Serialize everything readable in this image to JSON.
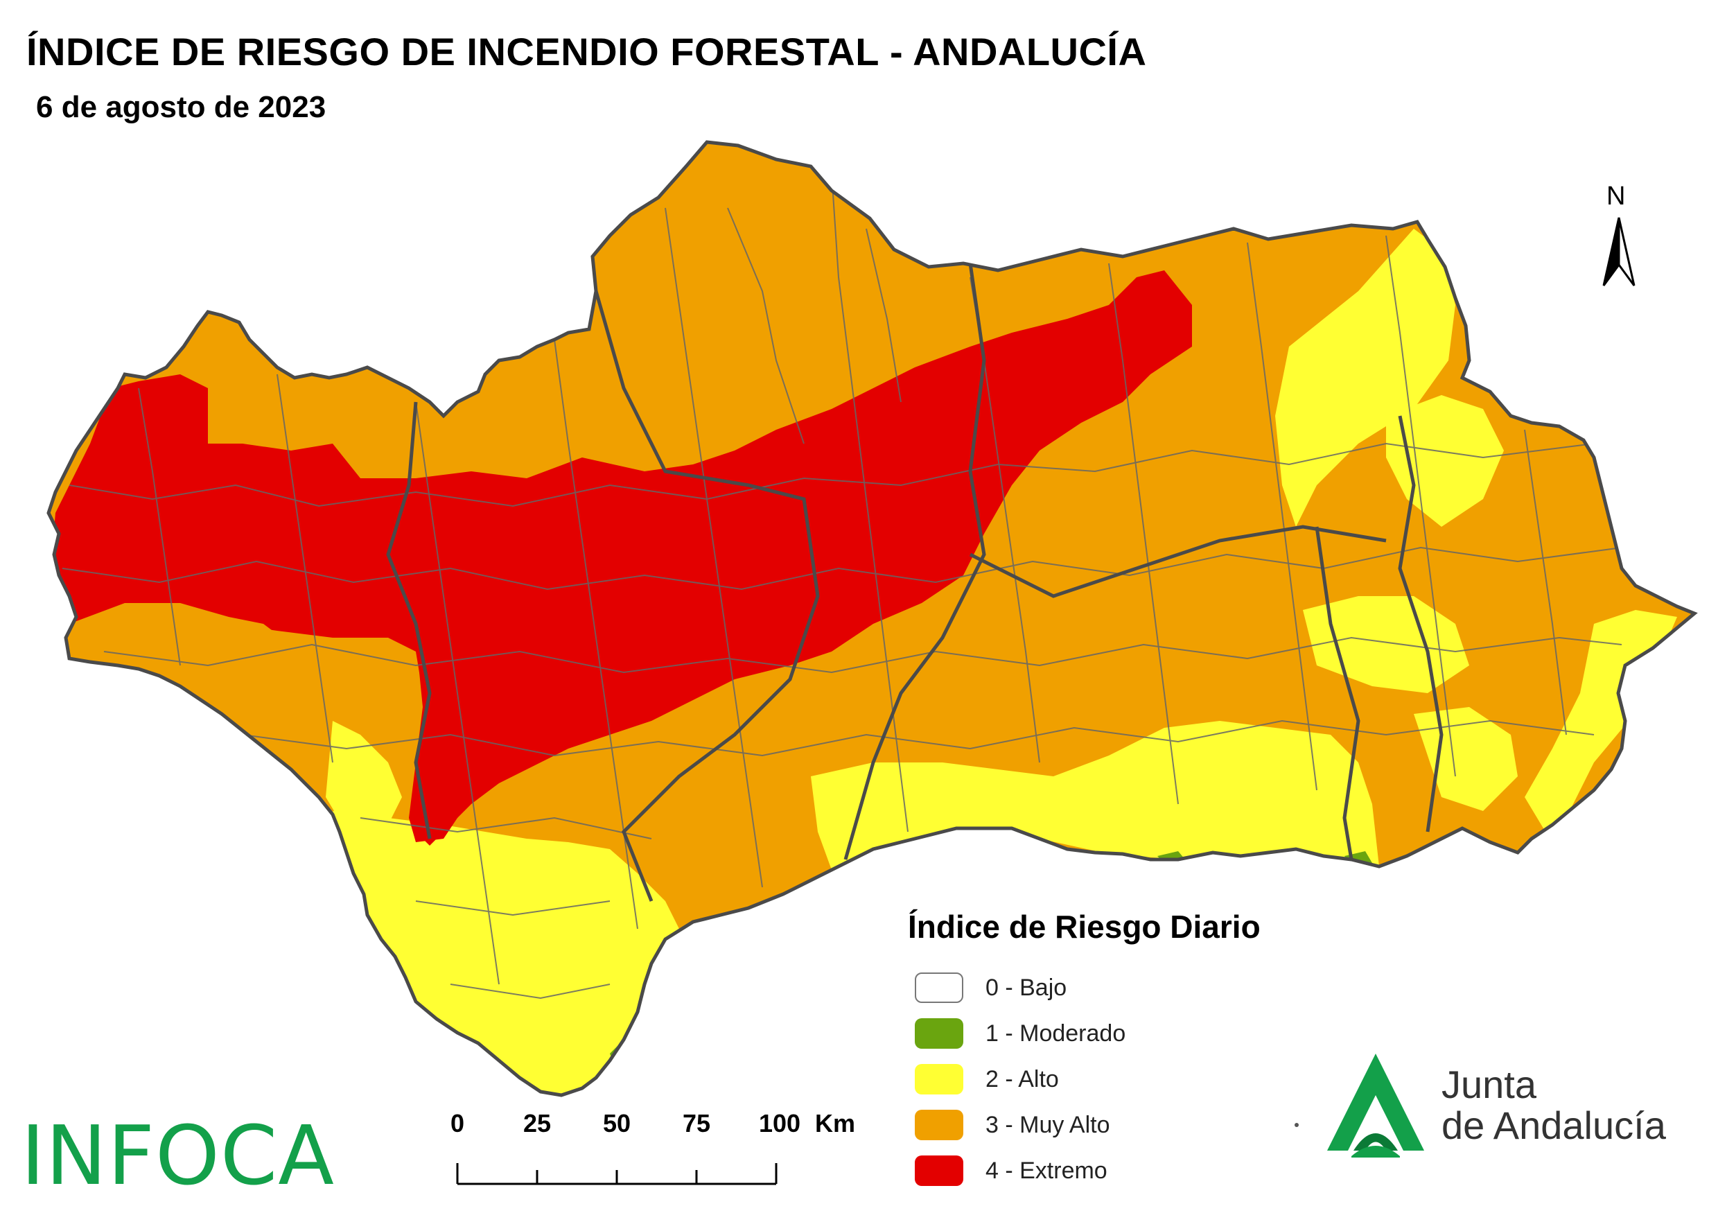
{
  "header": {
    "title": "ÍNDICE DE RIESGO DE INCENDIO FORESTAL - ANDALUCÍA",
    "subtitle": "6 de agosto de 2023"
  },
  "north_arrow": {
    "label": "N"
  },
  "legend": {
    "title": "Índice de Riesgo Diario",
    "items": [
      {
        "label": "0 - Bajo",
        "color": "#ffffff"
      },
      {
        "label": "1 - Moderado",
        "color": "#6aa50f"
      },
      {
        "label": "2 - Alto",
        "color": "#ffff33"
      },
      {
        "label": "3 - Muy Alto",
        "color": "#f0a000"
      },
      {
        "label": "4 - Extremo",
        "color": "#e30000"
      }
    ]
  },
  "scale_bar": {
    "ticks": [
      "0",
      "25",
      "50",
      "75",
      "100"
    ],
    "unit": "Km"
  },
  "logos": {
    "infoca": "INFOCA",
    "junta_line1": "Junta",
    "junta_line2": "de Andalucía"
  },
  "colors": {
    "border": "#5a5a5a",
    "infoca_green": "#13a04a",
    "junta_green": "#13a04a"
  }
}
